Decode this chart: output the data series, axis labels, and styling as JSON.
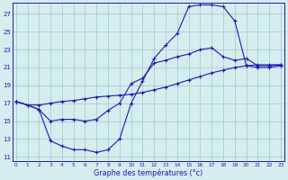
{
  "title": "Graphe des températures (°c)",
  "background_color": "#d4eef0",
  "grid_color": "#a8cdd0",
  "line_color": "#1a1aaa",
  "x_ticks": [
    0,
    1,
    2,
    3,
    4,
    5,
    6,
    7,
    8,
    9,
    10,
    11,
    12,
    13,
    14,
    15,
    16,
    17,
    18,
    19,
    20,
    21,
    22,
    23
  ],
  "y_ticks": [
    11,
    13,
    15,
    17,
    19,
    21,
    23,
    25,
    27
  ],
  "xlim": [
    -0.3,
    23.3
  ],
  "ylim": [
    10.5,
    28.2
  ],
  "series1_x": [
    0,
    1,
    2,
    3,
    4,
    5,
    6,
    7,
    8,
    9,
    10,
    11,
    12,
    13,
    14,
    15,
    16,
    17,
    18,
    19,
    20,
    21,
    22,
    23
  ],
  "series1_y": [
    17.2,
    16.8,
    16.8,
    17.0,
    17.2,
    17.3,
    17.5,
    17.7,
    17.8,
    17.9,
    18.0,
    18.2,
    18.5,
    18.8,
    19.2,
    19.6,
    20.0,
    20.4,
    20.7,
    21.0,
    21.2,
    21.3,
    21.3,
    21.3
  ],
  "series2_x": [
    0,
    1,
    2,
    3,
    4,
    5,
    6,
    7,
    8,
    9,
    10,
    11,
    12,
    13,
    14,
    15,
    16,
    17,
    18,
    19,
    20,
    21,
    22,
    23
  ],
  "series2_y": [
    17.2,
    16.8,
    16.3,
    12.8,
    12.2,
    11.8,
    11.8,
    11.5,
    11.8,
    13.0,
    17.0,
    19.5,
    22.0,
    23.5,
    24.8,
    27.8,
    28.0,
    28.0,
    27.8,
    26.2,
    21.2,
    21.0,
    21.0,
    21.2
  ],
  "series3_x": [
    0,
    1,
    2,
    3,
    4,
    5,
    6,
    7,
    8,
    9,
    10,
    11,
    12,
    13,
    14,
    15,
    16,
    17,
    18,
    19,
    20,
    21,
    22,
    23
  ],
  "series3_y": [
    17.2,
    16.8,
    16.3,
    15.0,
    15.2,
    15.2,
    15.0,
    15.2,
    16.2,
    17.0,
    19.2,
    19.8,
    21.5,
    21.8,
    22.2,
    22.5,
    23.0,
    23.2,
    22.2,
    21.8,
    22.0,
    21.2,
    21.2,
    21.3
  ]
}
